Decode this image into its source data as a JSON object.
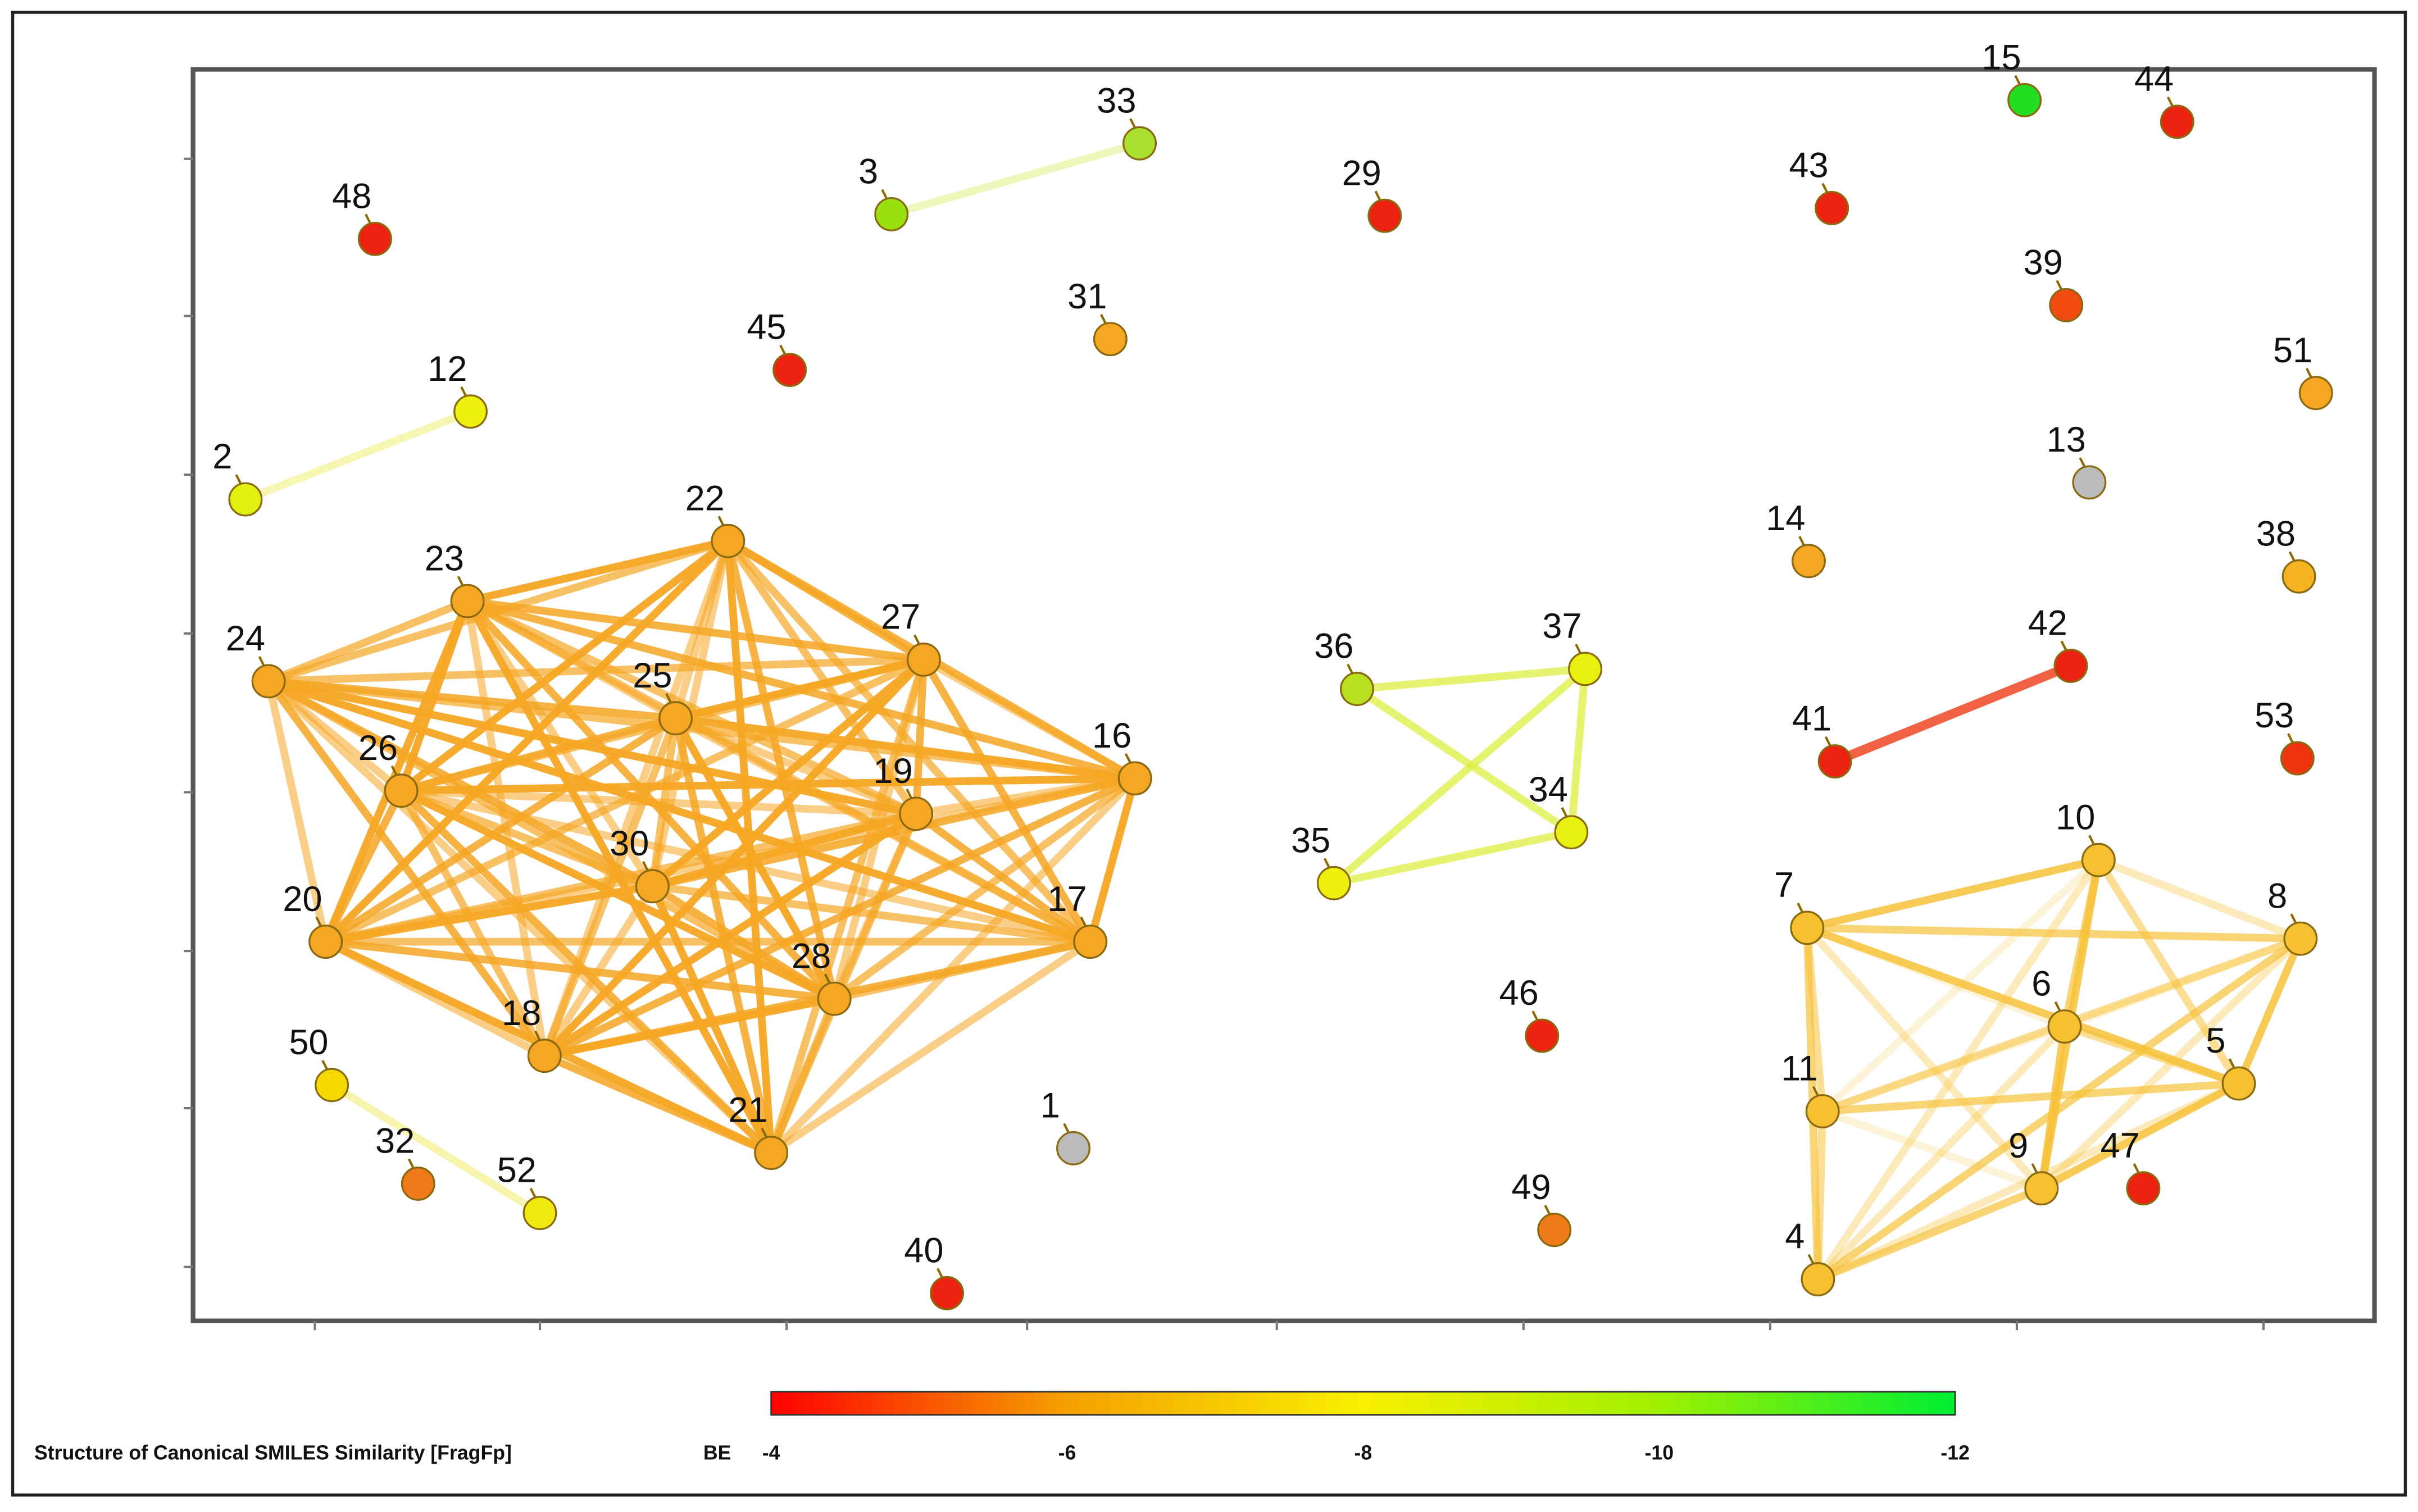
{
  "nodes": [
    {
      "label": "48",
      "color": "#ee2211"
    },
    {
      "label": "33",
      "color": "#aae030"
    },
    {
      "label": "3",
      "color": "#99e010"
    },
    {
      "label": "29",
      "color": "#ee2211"
    },
    {
      "label": "15",
      "color": "#22dd22"
    },
    {
      "label": "44",
      "color": "#ee2211"
    },
    {
      "label": "43",
      "color": "#ee2211"
    },
    {
      "label": "39",
      "color": "#f04a10"
    },
    {
      "label": "31",
      "color": "#f5a623"
    },
    {
      "label": "45",
      "color": "#ee2211"
    },
    {
      "label": "12",
      "color": "#eef010"
    },
    {
      "label": "2",
      "color": "#e0f010"
    },
    {
      "label": "51",
      "color": "#f5a623"
    },
    {
      "label": "13",
      "color": "#bbbbbb"
    },
    {
      "label": "14",
      "color": "#f5a623"
    },
    {
      "label": "38",
      "color": "#f5b323"
    },
    {
      "label": "22",
      "color": "#f5a623"
    },
    {
      "label": "23",
      "color": "#f5a623"
    },
    {
      "label": "24",
      "color": "#f5a623"
    },
    {
      "label": "27",
      "color": "#f5a623"
    },
    {
      "label": "25",
      "color": "#f5a623"
    },
    {
      "label": "26",
      "color": "#f5a623"
    },
    {
      "label": "19",
      "color": "#f5a623"
    },
    {
      "label": "16",
      "color": "#f5a623"
    },
    {
      "label": "30",
      "color": "#f5a623"
    },
    {
      "label": "20",
      "color": "#f5a623"
    },
    {
      "label": "17",
      "color": "#f5a623"
    },
    {
      "label": "28",
      "color": "#f5a623"
    },
    {
      "label": "18",
      "color": "#f5a623"
    },
    {
      "label": "21",
      "color": "#f5a623"
    },
    {
      "label": "50",
      "color": "#f5d800"
    },
    {
      "label": "32",
      "color": "#ee7a1a"
    },
    {
      "label": "52",
      "color": "#f0ea10"
    },
    {
      "label": "1",
      "color": "#bbbbbb"
    },
    {
      "label": "40",
      "color": "#ee2211"
    },
    {
      "label": "36",
      "color": "#b8e020"
    },
    {
      "label": "37",
      "color": "#e8f010"
    },
    {
      "label": "34",
      "color": "#e8f010"
    },
    {
      "label": "35",
      "color": "#f0f010"
    },
    {
      "label": "46",
      "color": "#ee2211"
    },
    {
      "label": "49",
      "color": "#ee7a1a"
    },
    {
      "label": "42",
      "color": "#ee2211"
    },
    {
      "label": "41",
      "color": "#ee2211"
    },
    {
      "label": "53",
      "color": "#ee3311"
    },
    {
      "label": "10",
      "color": "#f7c030"
    },
    {
      "label": "7",
      "color": "#f7c030"
    },
    {
      "label": "8",
      "color": "#f7c030"
    },
    {
      "label": "6",
      "color": "#f7c030"
    },
    {
      "label": "11",
      "color": "#f7c030"
    },
    {
      "label": "5",
      "color": "#f7c030"
    },
    {
      "label": "9",
      "color": "#f7c030"
    },
    {
      "label": "47",
      "color": "#ee2211"
    },
    {
      "label": "4",
      "color": "#f7c030"
    }
  ],
  "colorbar": {
    "title": "Structure of Canonical SMILES Similarity [FragFp]",
    "unit": "BE",
    "ticks": [
      "-4",
      "-6",
      "-8",
      "-10",
      "-12"
    ]
  }
}
